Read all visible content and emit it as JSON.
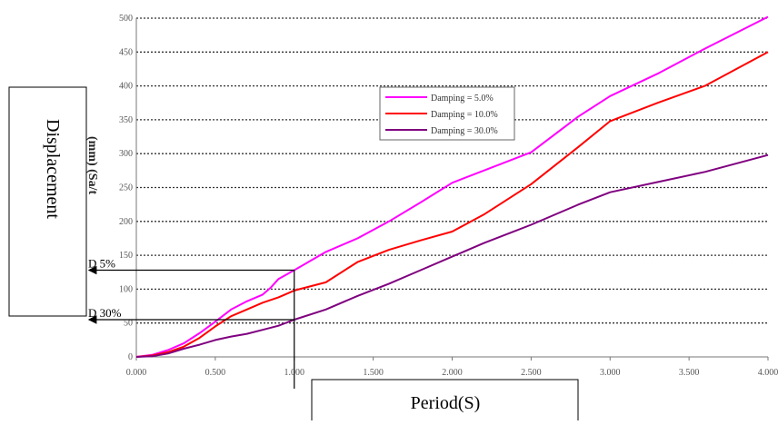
{
  "chart_data": {
    "type": "line",
    "title": "",
    "xlabel": "Period(S)",
    "ylabel": "Displacement",
    "ylabel_partial": "(mm) (Sa/t",
    "xlim": [
      0,
      4
    ],
    "ylim": [
      0,
      500
    ],
    "x_ticks": [
      "0.000",
      "0.500",
      "1.000",
      "1.500",
      "2.000",
      "2.500",
      "3.000",
      "3.500",
      "4.000"
    ],
    "y_ticks": [
      "0",
      "50",
      "100",
      "150",
      "200",
      "250",
      "300",
      "350",
      "400",
      "450",
      "500"
    ],
    "grid": true,
    "legend_position": "center",
    "series": [
      {
        "name": "Damping = 5.0%",
        "color": "#ff00ff",
        "x": [
          0,
          0.1,
          0.2,
          0.3,
          0.4,
          0.5,
          0.6,
          0.7,
          0.8,
          0.85,
          0.9,
          1.0,
          1.2,
          1.4,
          1.6,
          1.8,
          2.0,
          2.2,
          2.5,
          2.8,
          3.0,
          3.3,
          3.6,
          4.0
        ],
        "y": [
          0,
          3,
          10,
          20,
          35,
          52,
          70,
          82,
          92,
          102,
          115,
          128,
          155,
          175,
          200,
          228,
          257,
          275,
          302,
          355,
          385,
          418,
          455,
          502
        ]
      },
      {
        "name": "Damping = 10.0%",
        "color": "#ff0000",
        "x": [
          0,
          0.1,
          0.2,
          0.3,
          0.4,
          0.5,
          0.6,
          0.7,
          0.8,
          0.9,
          1.0,
          1.2,
          1.4,
          1.6,
          1.8,
          2.0,
          2.2,
          2.5,
          2.8,
          3.0,
          3.3,
          3.6,
          4.0
        ],
        "y": [
          0,
          2,
          7,
          15,
          28,
          45,
          60,
          70,
          80,
          88,
          98,
          110,
          140,
          158,
          172,
          185,
          210,
          255,
          310,
          348,
          375,
          400,
          450
        ]
      },
      {
        "name": "Damping = 30.0%",
        "color": "#800080",
        "x": [
          0,
          0.1,
          0.2,
          0.3,
          0.4,
          0.5,
          0.6,
          0.7,
          0.8,
          0.9,
          1.0,
          1.2,
          1.4,
          1.6,
          1.8,
          2.0,
          2.2,
          2.5,
          2.8,
          3.0,
          3.3,
          3.6,
          4.0
        ],
        "y": [
          0,
          1,
          5,
          12,
          18,
          25,
          30,
          34,
          40,
          46,
          55,
          70,
          90,
          108,
          128,
          148,
          168,
          195,
          225,
          243,
          258,
          273,
          298
        ]
      }
    ],
    "annotations": [
      {
        "label": "D 5%",
        "x": 1.0,
        "y": 128
      },
      {
        "label": "D 30%",
        "x": 1.0,
        "y": 55
      }
    ]
  }
}
